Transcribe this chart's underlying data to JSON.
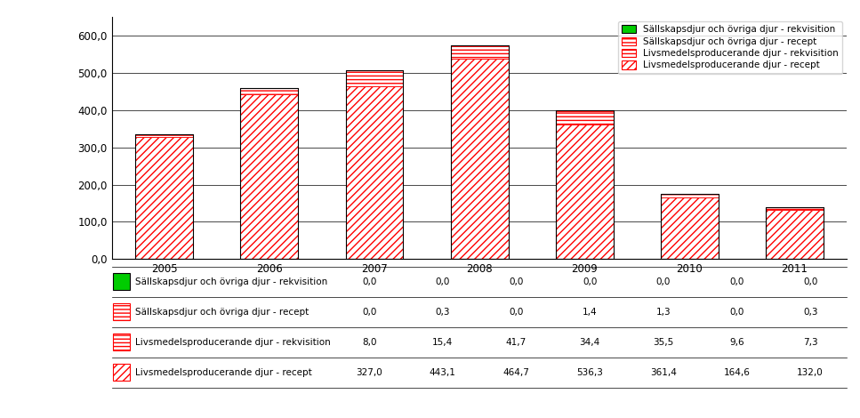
{
  "years": [
    "2005",
    "2006",
    "2007",
    "2008",
    "2009",
    "2010",
    "2011"
  ],
  "series": {
    "sallskaps_rekvisition": [
      0.0,
      0.0,
      0.0,
      0.0,
      0.0,
      0.0,
      0.0
    ],
    "sallskaps_recept": [
      0.0,
      0.3,
      0.0,
      1.4,
      1.3,
      0.0,
      0.3
    ],
    "livsmedel_rekvisition": [
      8.0,
      15.4,
      41.7,
      34.4,
      35.5,
      9.6,
      7.3
    ],
    "livsmedel_recept": [
      327.0,
      443.1,
      464.7,
      536.3,
      361.4,
      164.6,
      132.0
    ]
  },
  "legend_labels": [
    "Sällskapsdjur och övriga djur - rekvisition",
    "Sällskapsdjur och övriga djur - recept",
    "Livsmedelsproducerande djur - rekvisition",
    "Livsmedelsproducerande djur - recept"
  ],
  "ylim": [
    0,
    650
  ],
  "yticks": [
    0,
    100.0,
    200.0,
    300.0,
    400.0,
    500.0,
    600.0
  ],
  "table_rows": [
    [
      "0,0",
      "0,0",
      "0,0",
      "0,0",
      "0,0",
      "0,0",
      "0,0"
    ],
    [
      "0,0",
      "0,3",
      "0,0",
      "1,4",
      "1,3",
      "0,0",
      "0,3"
    ],
    [
      "8,0",
      "15,4",
      "41,7",
      "34,4",
      "35,5",
      "9,6",
      "7,3"
    ],
    [
      "327,0",
      "443,1",
      "464,7",
      "536,3",
      "361,4",
      "164,6",
      "132,0"
    ]
  ],
  "bar_width": 0.55,
  "background_color": "#ffffff",
  "table_font_size": 7.5,
  "legend_font_size": 7.5,
  "tick_font_size": 8.5
}
